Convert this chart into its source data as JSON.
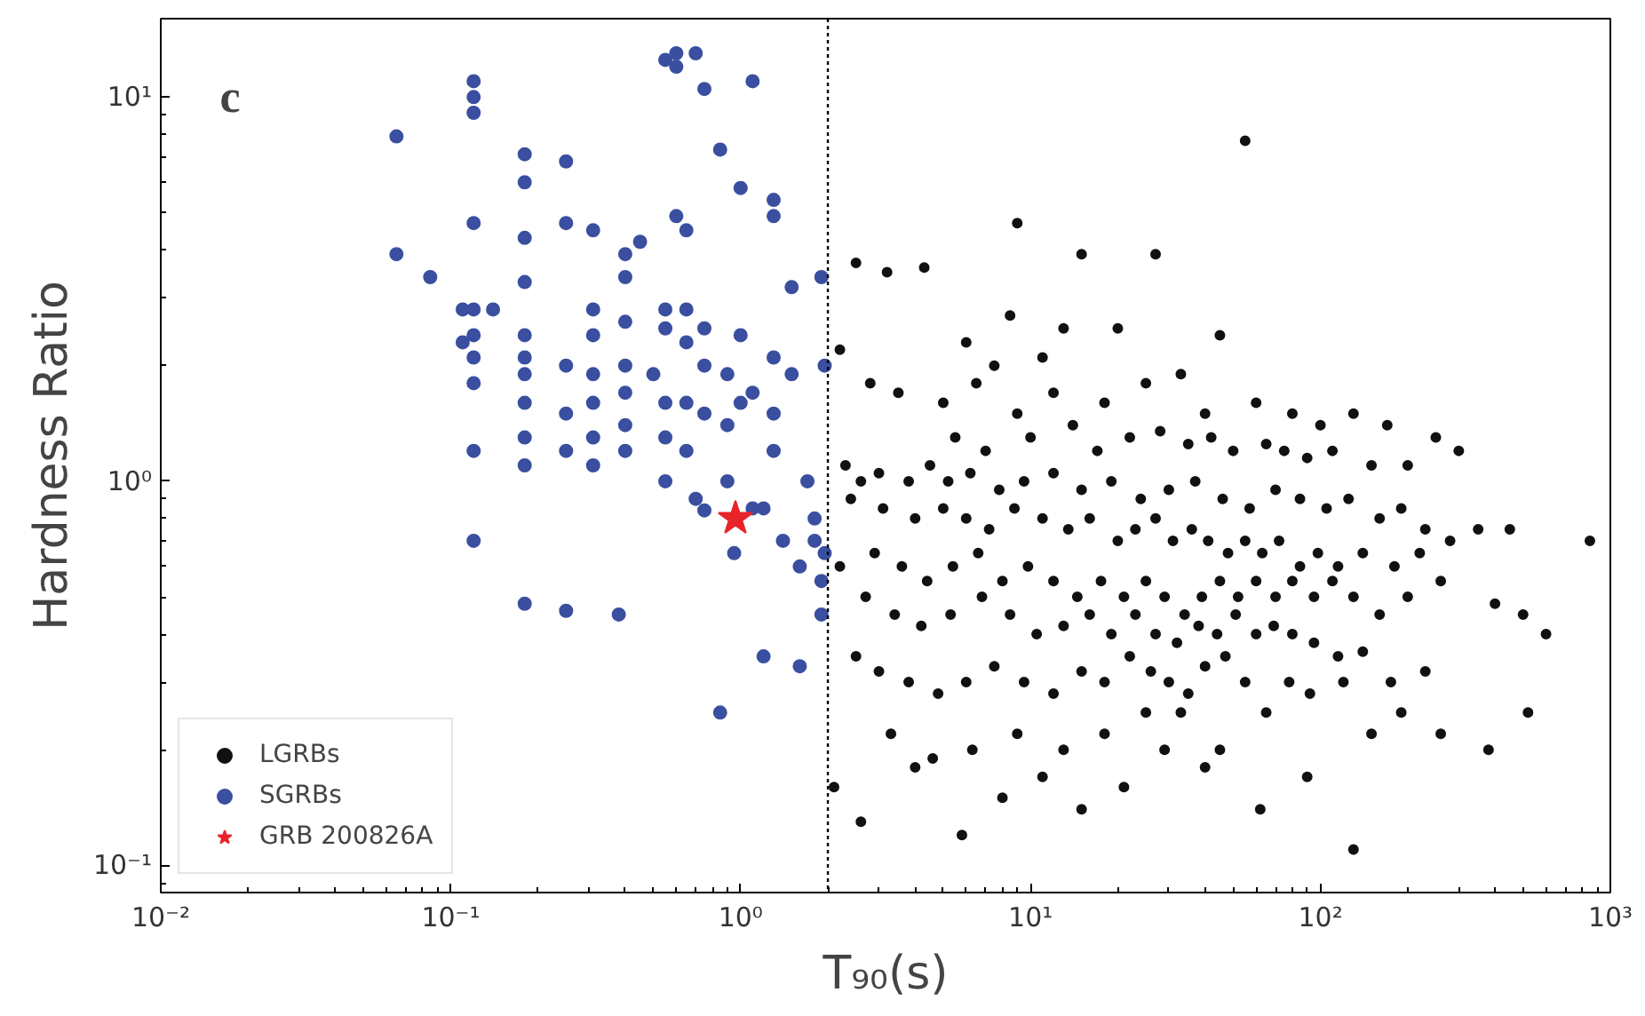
{
  "chart_data": {
    "type": "scatter",
    "xlabel": "T₉₀(s)",
    "ylabel": "Hardness Ratio",
    "annotations": [
      "c"
    ],
    "log": "xy",
    "grid": false,
    "legend": "bottom left",
    "xlim": [
      0.01,
      1000
    ],
    "ylim": [
      0.085,
      16
    ],
    "xticks": [
      {
        "value": 0.01,
        "label": "10⁻²"
      },
      {
        "value": 0.1,
        "label": "10⁻¹"
      },
      {
        "value": 1,
        "label": "10⁰"
      },
      {
        "value": 10,
        "label": "10¹"
      },
      {
        "value": 100,
        "label": "10²"
      },
      {
        "value": 1000,
        "label": "10³"
      }
    ],
    "yticks": [
      {
        "value": 0.1,
        "label": "10⁻¹"
      },
      {
        "value": 1,
        "label": "10⁰"
      },
      {
        "value": 10,
        "label": "10¹"
      }
    ],
    "ref_lines": [
      {
        "axis": "x",
        "value": 2,
        "color": "#000000",
        "line_style": "dotted"
      }
    ],
    "series": [
      {
        "name": "LGRBs",
        "color": "#111111",
        "marker": "circle",
        "x": [
          55,
          9,
          15,
          27,
          3.2,
          2.5,
          4.3,
          8.5,
          13,
          20,
          45,
          6,
          7.5,
          11,
          2.2,
          2.8,
          3.5,
          5,
          6.5,
          9,
          12,
          18,
          25,
          33,
          40,
          60,
          80,
          100,
          130,
          170,
          250,
          5.5,
          7,
          10,
          14,
          17,
          22,
          28,
          35,
          42,
          50,
          65,
          75,
          90,
          110,
          150,
          200,
          300,
          2.3,
          2.6,
          3,
          3.8,
          4.5,
          5.2,
          6.2,
          7.8,
          9.5,
          12,
          15,
          19,
          24,
          30,
          37,
          46,
          57,
          70,
          85,
          105,
          125,
          160,
          190,
          230,
          2.4,
          3.1,
          4,
          5,
          6,
          7.2,
          8.8,
          11,
          13.5,
          16,
          20,
          23,
          27,
          31,
          36,
          41,
          48,
          55,
          63,
          72,
          85,
          98,
          115,
          140,
          180,
          220,
          280,
          350,
          450,
          600,
          850,
          2.2,
          2.9,
          3.6,
          4.4,
          5.4,
          6.6,
          8,
          9.8,
          12,
          14.5,
          17.5,
          21,
          25,
          29,
          34,
          39,
          45,
          52,
          60,
          70,
          80,
          95,
          110,
          130,
          160,
          200,
          260,
          400,
          500,
          2.7,
          3.4,
          4.2,
          5.3,
          6.8,
          8.5,
          10.5,
          13,
          16,
          19,
          23,
          27,
          32,
          38,
          44,
          51,
          60,
          69,
          80,
          95,
          115,
          140,
          175,
          230,
          2.5,
          3,
          3.8,
          4.8,
          6,
          7.5,
          9.5,
          12,
          15,
          18,
          22,
          26,
          30,
          35,
          40,
          47,
          55,
          65,
          78,
          92,
          120,
          150,
          190,
          260,
          380,
          520,
          3.3,
          4.6,
          6.3,
          9,
          13,
          18,
          25,
          33,
          45,
          62,
          90,
          130,
          2.1,
          2.6,
          4,
          5.8,
          8,
          11,
          15,
          21,
          29,
          40
        ],
        "values": [
          7.7,
          4.7,
          3.9,
          3.9,
          3.5,
          3.7,
          3.6,
          2.7,
          2.5,
          2.5,
          2.4,
          2.3,
          2.0,
          2.1,
          2.2,
          1.8,
          1.7,
          1.6,
          1.8,
          1.5,
          1.7,
          1.6,
          1.8,
          1.9,
          1.5,
          1.6,
          1.5,
          1.4,
          1.5,
          1.4,
          1.3,
          1.3,
          1.2,
          1.3,
          1.4,
          1.2,
          1.3,
          1.35,
          1.25,
          1.3,
          1.2,
          1.25,
          1.2,
          1.15,
          1.2,
          1.1,
          1.1,
          1.2,
          1.1,
          1.0,
          1.05,
          1.0,
          1.1,
          1.0,
          1.05,
          0.95,
          1.0,
          1.05,
          0.95,
          1.0,
          0.9,
          0.95,
          1.0,
          0.9,
          0.85,
          0.95,
          0.9,
          0.85,
          0.9,
          0.8,
          0.85,
          0.75,
          0.9,
          0.85,
          0.8,
          0.85,
          0.8,
          0.75,
          0.85,
          0.8,
          0.75,
          0.8,
          0.7,
          0.75,
          0.8,
          0.7,
          0.75,
          0.7,
          0.65,
          0.7,
          0.65,
          0.7,
          0.6,
          0.65,
          0.6,
          0.65,
          0.6,
          0.65,
          0.7,
          0.75,
          0.75,
          0.4,
          0.7,
          0.6,
          0.65,
          0.6,
          0.55,
          0.6,
          0.65,
          0.55,
          0.6,
          0.55,
          0.5,
          0.55,
          0.5,
          0.55,
          0.5,
          0.45,
          0.5,
          0.55,
          0.5,
          0.55,
          0.5,
          0.55,
          0.5,
          0.55,
          0.5,
          0.45,
          0.5,
          0.55,
          0.48,
          0.45,
          0.5,
          0.45,
          0.42,
          0.45,
          0.5,
          0.45,
          0.4,
          0.42,
          0.45,
          0.4,
          0.45,
          0.4,
          0.38,
          0.42,
          0.4,
          0.45,
          0.4,
          0.42,
          0.4,
          0.38,
          0.35,
          0.36,
          0.3,
          0.32,
          0.35,
          0.32,
          0.3,
          0.28,
          0.3,
          0.33,
          0.3,
          0.28,
          0.32,
          0.3,
          0.35,
          0.32,
          0.3,
          0.28,
          0.33,
          0.35,
          0.3,
          0.25,
          0.3,
          0.28,
          0.3,
          0.22,
          0.25,
          0.22,
          0.2,
          0.25,
          0.22,
          0.19,
          0.2,
          0.22,
          0.2,
          0.22,
          0.25,
          0.25,
          0.2,
          0.14,
          0.17,
          0.11,
          0.16,
          0.13,
          0.18,
          0.12,
          0.15,
          0.17,
          0.14,
          0.16,
          0.2,
          0.18
        ]
      },
      {
        "name": "SGRBs",
        "color": "#3a4fa0",
        "marker": "circle",
        "x": [
          0.065,
          0.065,
          0.085,
          0.11,
          0.11,
          0.12,
          0.12,
          0.12,
          0.12,
          0.12,
          0.12,
          0.12,
          0.12,
          0.12,
          0.12,
          0.14,
          0.18,
          0.18,
          0.18,
          0.18,
          0.18,
          0.18,
          0.18,
          0.18,
          0.18,
          0.18,
          0.18,
          0.25,
          0.25,
          0.25,
          0.25,
          0.25,
          0.25,
          0.31,
          0.31,
          0.31,
          0.31,
          0.31,
          0.31,
          0.31,
          0.4,
          0.4,
          0.4,
          0.4,
          0.4,
          0.4,
          0.4,
          0.38,
          0.45,
          0.5,
          0.55,
          0.55,
          0.55,
          0.55,
          0.55,
          0.55,
          0.6,
          0.6,
          0.6,
          0.65,
          0.65,
          0.65,
          0.65,
          0.65,
          0.7,
          0.7,
          0.75,
          0.75,
          0.75,
          0.75,
          0.75,
          0.85,
          0.9,
          0.9,
          0.9,
          0.95,
          1.0,
          1.0,
          1.0,
          1.1,
          1.1,
          1.1,
          1.2,
          1.2,
          1.3,
          1.3,
          1.3,
          1.3,
          1.3,
          1.4,
          1.5,
          1.5,
          1.6,
          1.6,
          1.7,
          1.8,
          1.8,
          1.9,
          1.9,
          1.9,
          0.85,
          1.95,
          1.95
        ],
        "values": [
          7.9,
          3.9,
          3.4,
          2.8,
          2.3,
          11,
          10,
          9.1,
          4.7,
          2.8,
          2.4,
          2.1,
          1.8,
          1.2,
          0.7,
          2.8,
          7.1,
          6.0,
          4.3,
          3.3,
          2.4,
          2.1,
          1.9,
          1.6,
          1.3,
          1.1,
          0.48,
          6.8,
          4.7,
          2.0,
          1.5,
          1.2,
          0.46,
          4.5,
          2.8,
          2.4,
          1.9,
          1.6,
          1.3,
          1.1,
          3.9,
          3.4,
          2.6,
          2.0,
          1.7,
          1.4,
          1.2,
          0.45,
          4.2,
          1.9,
          2.8,
          2.5,
          1.6,
          1.3,
          1.0,
          12.5,
          13,
          12,
          4.9,
          4.5,
          2.8,
          2.3,
          1.6,
          1.2,
          0.9,
          13,
          10.5,
          2.5,
          2.0,
          1.5,
          0.84,
          7.3,
          1.9,
          1.4,
          1.0,
          0.65,
          5.8,
          2.4,
          1.6,
          11,
          0.85,
          1.7,
          0.35,
          0.85,
          5.4,
          4.9,
          2.1,
          1.5,
          1.2,
          0.7,
          3.2,
          1.9,
          0.6,
          0.33,
          1.0,
          0.8,
          0.7,
          0.55,
          0.45,
          3.4,
          0.25,
          2.0,
          0.65
        ]
      },
      {
        "name": "GRB 200826A",
        "color": "#e8232a",
        "marker": "star",
        "x": [
          0.96
        ],
        "values": [
          0.8
        ]
      }
    ]
  }
}
